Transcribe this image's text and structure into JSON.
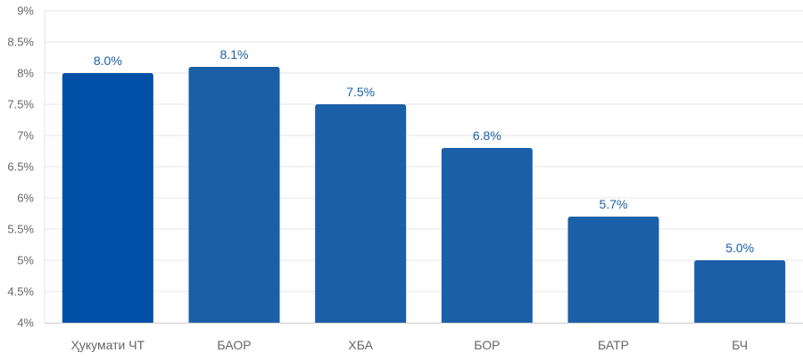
{
  "chart_data": {
    "type": "bar",
    "categories": [
      "Ҳукумати ЧТ",
      "БАОР",
      "ХБА",
      "БОР",
      "БАТР",
      "БЧ"
    ],
    "values": [
      8.0,
      8.1,
      7.5,
      6.8,
      5.7,
      5.0
    ],
    "data_labels": [
      "8.0%",
      "8.1%",
      "7.5%",
      "6.8%",
      "5.7%",
      "5.0%"
    ],
    "y_ticks": [
      "4%",
      "4.5%",
      "5%",
      "5.5%",
      "6%",
      "6.5%",
      "7%",
      "7.5%",
      "8%",
      "8.5%",
      "9%"
    ],
    "ylim": [
      4,
      9
    ],
    "ystep": 0.5,
    "title": "",
    "xlabel": "",
    "ylabel": "",
    "grid": true,
    "legend": "none",
    "colors": {
      "highlight_bar": "#0050a8",
      "bar": "#1a5fa8",
      "label": "#1a5fa8",
      "grid": "#e6e6e6",
      "tick_text": "#666666"
    }
  }
}
